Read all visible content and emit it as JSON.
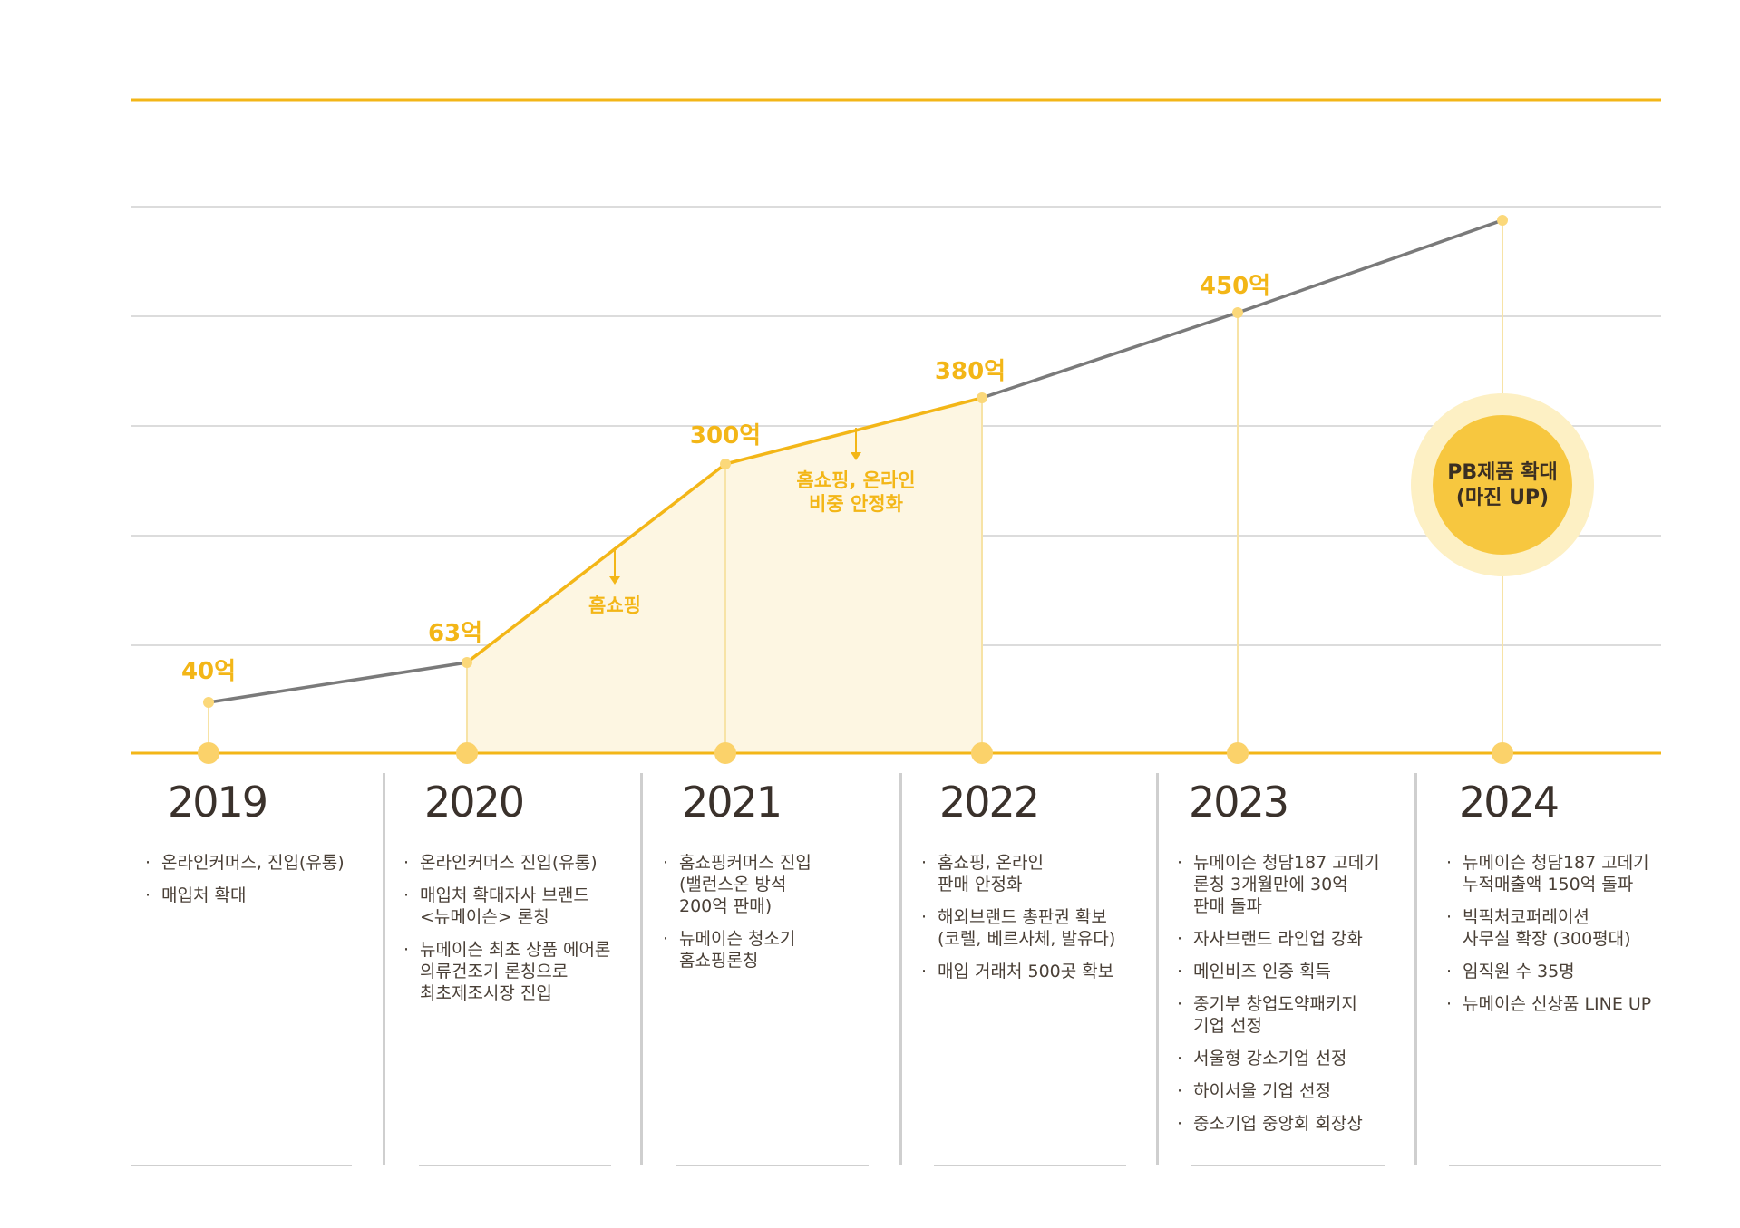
{
  "colors": {
    "accent": "#f3b617",
    "line_gray": "#7a7a7a",
    "fill": "#fdf6e2",
    "badge": "#f7c73f"
  },
  "chart_data": {
    "type": "line",
    "x": [
      "2019",
      "2020",
      "2021",
      "2022",
      "2023",
      "2024"
    ],
    "series": [
      {
        "values": [
          40,
          63,
          300,
          380,
          450,
          null
        ]
      }
    ],
    "value_labels": [
      "40억",
      "63억",
      "300억",
      "380억",
      "450억"
    ],
    "annotations": [
      "홈쇼핑",
      "홈쇼핑, 온라인\n비중 안정화"
    ],
    "badge": "PB제품 확대\n(마진 UP)",
    "grid": true
  },
  "timeline": [
    {
      "year": "2019",
      "items": [
        "온라인커머스, 진입(유통)",
        "매입처 확대"
      ]
    },
    {
      "year": "2020",
      "items": [
        "온라인커머스 진입(유통)",
        "매입처 확대자사 브랜드\n<뉴메이슨> 론칭",
        "뉴메이슨 최초 상품 에어론\n의류건조기 론칭으로\n최초제조시장 진입"
      ]
    },
    {
      "year": "2021",
      "items": [
        "홈쇼핑커머스 진입\n(밸런스온 방석\n200억 판매)",
        "뉴메이슨 청소기\n홈쇼핑론칭"
      ]
    },
    {
      "year": "2022",
      "items": [
        "홈쇼핑, 온라인\n판매 안정화",
        "해외브랜드 총판권 확보\n(코렐, 베르사체, 발유다)",
        "매입 거래처 500곳 확보"
      ]
    },
    {
      "year": "2023",
      "items": [
        "뉴메이슨 청담187 고데기\n론칭 3개월만에 30억\n판매 돌파",
        "자사브랜드 라인업 강화",
        "메인비즈 인증 획득",
        "중기부 창업도약패키지\n기업 선정",
        "서울형 강소기업 선정",
        "하이서울 기업 선정",
        "중소기업 중앙회 회장상"
      ]
    },
    {
      "year": "2024",
      "items": [
        "뉴메이슨 청담187 고데기\n누적매출액 150억 돌파",
        "빅픽처코퍼레이션\n사무실 확장 (300평대)",
        "임직원 수 35명",
        "뉴메이슨 신상품 LINE UP"
      ]
    }
  ]
}
